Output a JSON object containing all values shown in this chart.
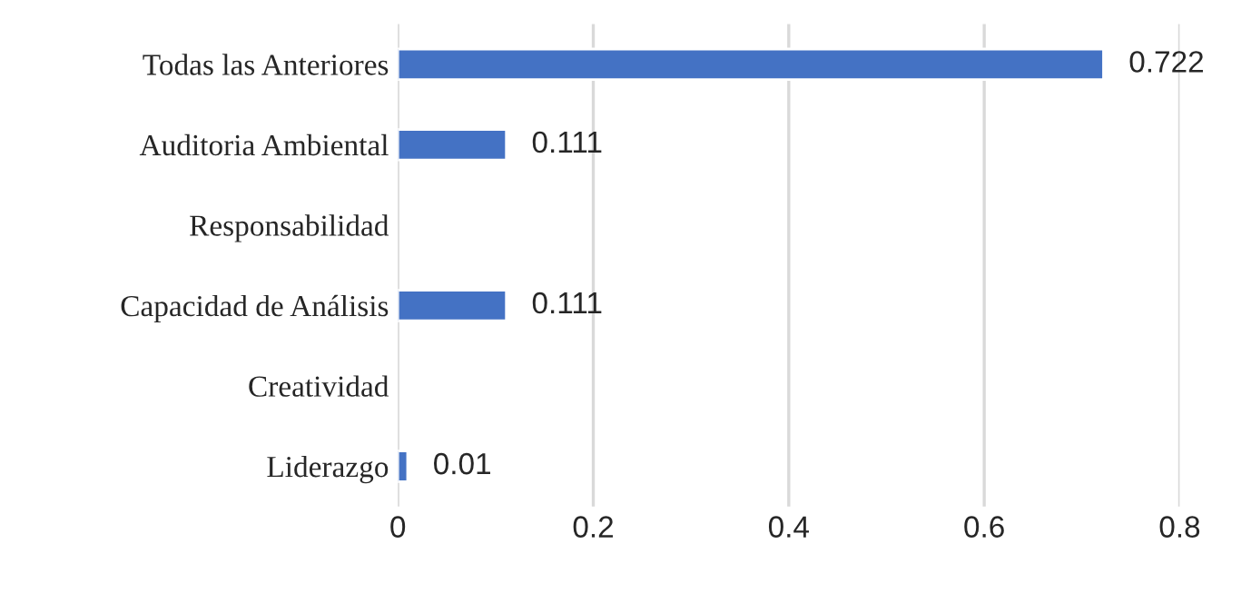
{
  "chart_data": {
    "type": "bar",
    "orientation": "horizontal",
    "categories": [
      "Todas las Anteriores",
      "Auditoria Ambiental",
      "Responsabilidad",
      "Capacidad de Análisis",
      "Creatividad",
      "Liderazgo"
    ],
    "values": [
      0.722,
      0.111,
      null,
      0.111,
      null,
      0.01
    ],
    "value_labels": [
      "0.722",
      "0.111",
      null,
      "0.111",
      null,
      "0.01"
    ],
    "color": "#4472c4",
    "xlim": [
      0,
      0.8
    ],
    "xticks": [
      0,
      0.2,
      0.4,
      0.6,
      0.8
    ],
    "grid": "x",
    "legend": false
  }
}
